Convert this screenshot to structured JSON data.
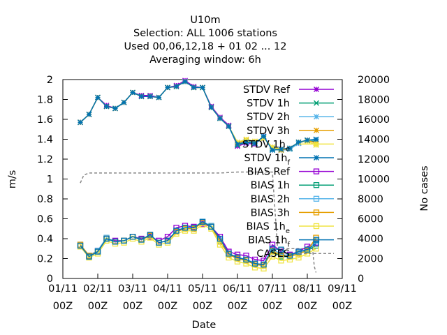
{
  "chart_data": {
    "type": "line",
    "title_lines": [
      "U10m",
      "Selection: ALL    1006 stations",
      "Used  00,06,12,18 + 01 02 ... 12",
      "Averaging window:  6h"
    ],
    "xlabel": "Date",
    "ylabel": "m/s",
    "y2label": "No cases",
    "xlim": [
      0,
      8
    ],
    "ylim": [
      0,
      2
    ],
    "y2lim": [
      0,
      20000
    ],
    "x_ticks": [
      {
        "pos": 0,
        "line1": "01/11",
        "line2": "00Z"
      },
      {
        "pos": 1,
        "line1": "02/11",
        "line2": "00Z"
      },
      {
        "pos": 2,
        "line1": "03/11",
        "line2": "00Z"
      },
      {
        "pos": 3,
        "line1": "04/11",
        "line2": "00Z"
      },
      {
        "pos": 4,
        "line1": "05/11",
        "line2": "00Z"
      },
      {
        "pos": 5,
        "line1": "06/11",
        "line2": "00Z"
      },
      {
        "pos": 6,
        "line1": "07/11",
        "line2": "00Z"
      },
      {
        "pos": 7,
        "line1": "08/11",
        "line2": "00Z"
      },
      {
        "pos": 8,
        "line1": "09/11",
        "line2": "00Z"
      }
    ],
    "y_ticks": [
      "0",
      "0.2",
      "0.4",
      "0.6",
      "0.8",
      "1",
      "1.2",
      "1.4",
      "1.6",
      "1.8",
      "2"
    ],
    "y2_ticks": [
      "0",
      "2000",
      "4000",
      "6000",
      "8000",
      "10000",
      "12000",
      "14000",
      "16000",
      "18000",
      "20000"
    ],
    "grid": false,
    "legend_position": "top-right",
    "x": [
      0.5,
      0.75,
      1.0,
      1.25,
      1.5,
      1.75,
      2.0,
      2.25,
      2.5,
      2.75,
      3.0,
      3.25,
      3.5,
      3.75,
      4.0,
      4.25,
      4.5,
      4.75,
      5.0,
      5.25,
      5.5,
      5.75,
      6.0,
      6.25,
      6.5,
      6.75,
      7.0,
      7.25
    ],
    "series": [
      {
        "name": "STDV Ref",
        "color": "#9400d3",
        "marker": "star",
        "axis": "y",
        "values": [
          1.57,
          1.65,
          1.82,
          1.74,
          1.71,
          1.77,
          1.87,
          1.84,
          1.84,
          1.82,
          1.92,
          1.94,
          1.99,
          1.93,
          1.92,
          1.73,
          1.62,
          1.54,
          1.33,
          1.36,
          1.35,
          1.43,
          1.3,
          1.3,
          1.31,
          1.36,
          1.39,
          1.37
        ]
      },
      {
        "name": "STDV 1h",
        "color": "#009e73",
        "marker": "x",
        "axis": "y",
        "values": [
          1.57,
          1.65,
          1.82,
          1.73,
          1.71,
          1.77,
          1.87,
          1.83,
          1.83,
          1.82,
          1.92,
          1.93,
          1.98,
          1.92,
          1.92,
          1.72,
          1.61,
          1.53,
          1.34,
          1.37,
          1.36,
          1.42,
          1.3,
          1.29,
          1.3,
          1.36,
          1.39,
          1.38
        ]
      },
      {
        "name": "STDV 2h",
        "color": "#56b4e9",
        "marker": "star",
        "axis": "y",
        "values": [
          1.57,
          1.65,
          1.82,
          1.73,
          1.71,
          1.77,
          1.87,
          1.83,
          1.83,
          1.82,
          1.92,
          1.93,
          1.98,
          1.92,
          1.92,
          1.72,
          1.61,
          1.53,
          1.35,
          1.38,
          1.37,
          1.42,
          1.31,
          1.29,
          1.3,
          1.36,
          1.39,
          1.39
        ]
      },
      {
        "name": "STDV 3h",
        "color": "#e69f00",
        "marker": "star",
        "axis": "y",
        "values": [
          1.57,
          1.65,
          1.82,
          1.73,
          1.71,
          1.77,
          1.87,
          1.83,
          1.83,
          1.82,
          1.92,
          1.93,
          1.98,
          1.92,
          1.92,
          1.72,
          1.61,
          1.53,
          1.36,
          1.39,
          1.38,
          1.41,
          1.32,
          1.29,
          1.31,
          1.37,
          1.39,
          1.36
        ]
      },
      {
        "name": "STDV 1h_e",
        "color": "#f0e442",
        "marker": "star",
        "axis": "y",
        "values": [
          1.57,
          1.65,
          1.82,
          1.73,
          1.71,
          1.77,
          1.87,
          1.83,
          1.83,
          1.82,
          1.92,
          1.93,
          1.98,
          1.92,
          1.92,
          1.72,
          1.61,
          1.53,
          1.37,
          1.4,
          1.38,
          1.41,
          1.32,
          1.3,
          1.31,
          1.37,
          1.38,
          1.34
        ]
      },
      {
        "name": "STDV 1h_f",
        "color": "#0072b2",
        "marker": "star",
        "axis": "y",
        "values": [
          1.57,
          1.65,
          1.82,
          1.73,
          1.71,
          1.77,
          1.87,
          1.83,
          1.83,
          1.82,
          1.92,
          1.93,
          1.98,
          1.92,
          1.92,
          1.72,
          1.61,
          1.53,
          1.35,
          1.37,
          1.36,
          1.43,
          1.29,
          1.3,
          1.31,
          1.37,
          1.39,
          1.4
        ]
      },
      {
        "name": "BIAS Ref",
        "color": "#9400d3",
        "marker": "square",
        "axis": "y",
        "values": [
          0.33,
          0.23,
          0.28,
          0.4,
          0.38,
          0.38,
          0.42,
          0.4,
          0.42,
          0.38,
          0.42,
          0.51,
          0.53,
          0.52,
          0.55,
          0.52,
          0.42,
          0.27,
          0.24,
          0.23,
          0.19,
          0.18,
          0.34,
          0.27,
          0.24,
          0.27,
          0.32,
          0.36
        ]
      },
      {
        "name": "BIAS 1h",
        "color": "#009e73",
        "marker": "square",
        "axis": "y",
        "values": [
          0.33,
          0.22,
          0.27,
          0.4,
          0.37,
          0.38,
          0.42,
          0.39,
          0.43,
          0.36,
          0.38,
          0.48,
          0.51,
          0.51,
          0.57,
          0.52,
          0.38,
          0.25,
          0.21,
          0.19,
          0.15,
          0.14,
          0.27,
          0.22,
          0.22,
          0.25,
          0.28,
          0.33
        ]
      },
      {
        "name": "BIAS 2h",
        "color": "#56b4e9",
        "marker": "square",
        "axis": "y",
        "values": [
          0.34,
          0.23,
          0.28,
          0.41,
          0.37,
          0.38,
          0.42,
          0.39,
          0.44,
          0.36,
          0.38,
          0.48,
          0.51,
          0.5,
          0.57,
          0.53,
          0.38,
          0.25,
          0.21,
          0.19,
          0.15,
          0.14,
          0.3,
          0.24,
          0.23,
          0.26,
          0.29,
          0.38
        ]
      },
      {
        "name": "BIAS 3h",
        "color": "#e69f00",
        "marker": "square",
        "axis": "y",
        "values": [
          0.34,
          0.23,
          0.27,
          0.4,
          0.37,
          0.38,
          0.42,
          0.39,
          0.43,
          0.36,
          0.38,
          0.47,
          0.5,
          0.5,
          0.56,
          0.52,
          0.37,
          0.24,
          0.2,
          0.18,
          0.14,
          0.13,
          0.28,
          0.23,
          0.22,
          0.25,
          0.28,
          0.41
        ]
      },
      {
        "name": "BIAS 1h_e",
        "color": "#f0e442",
        "marker": "square",
        "axis": "y",
        "values": [
          0.32,
          0.21,
          0.25,
          0.38,
          0.35,
          0.36,
          0.4,
          0.37,
          0.41,
          0.34,
          0.36,
          0.45,
          0.48,
          0.48,
          0.54,
          0.5,
          0.34,
          0.21,
          0.17,
          0.15,
          0.11,
          0.1,
          0.22,
          0.18,
          0.19,
          0.21,
          0.25,
          0.3
        ]
      },
      {
        "name": "BIAS 1h_f",
        "color": "#0072b2",
        "marker": "square",
        "axis": "y",
        "values": [
          0.33,
          0.22,
          0.27,
          0.4,
          0.37,
          0.38,
          0.42,
          0.39,
          0.44,
          0.36,
          0.38,
          0.48,
          0.51,
          0.51,
          0.57,
          0.52,
          0.4,
          0.25,
          0.21,
          0.19,
          0.15,
          0.14,
          0.3,
          0.29,
          0.23,
          0.27,
          0.29,
          0.35
        ]
      }
    ],
    "cases": {
      "name": "CASES",
      "color": "#888888",
      "style": "dashed",
      "axis": "y2",
      "x": [
        0.5,
        0.6,
        0.75,
        1.0,
        1.5,
        2.0,
        2.5,
        3.0,
        3.5,
        4.0,
        4.5,
        5.0,
        5.5,
        6.0,
        6.15,
        6.3,
        6.5,
        6.75,
        7.0,
        7.15,
        7.2,
        7.25
      ],
      "values": [
        9600,
        10400,
        10600,
        10600,
        10600,
        10600,
        10600,
        10600,
        10600,
        10600,
        10600,
        10700,
        10700,
        10700,
        3000,
        3000,
        3000,
        3000,
        3000,
        3000,
        1200,
        600
      ]
    }
  }
}
